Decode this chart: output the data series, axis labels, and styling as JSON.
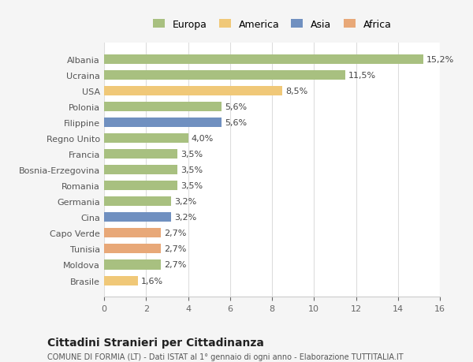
{
  "countries": [
    "Brasile",
    "Moldova",
    "Tunisia",
    "Capo Verde",
    "Cina",
    "Germania",
    "Romania",
    "Bosnia-Erzegovina",
    "Francia",
    "Regno Unito",
    "Filippine",
    "Polonia",
    "USA",
    "Ucraina",
    "Albania"
  ],
  "values": [
    1.6,
    2.7,
    2.7,
    2.7,
    3.2,
    3.2,
    3.5,
    3.5,
    3.5,
    4.0,
    5.6,
    5.6,
    8.5,
    11.5,
    15.2
  ],
  "labels": [
    "1,6%",
    "2,7%",
    "2,7%",
    "2,7%",
    "3,2%",
    "3,2%",
    "3,5%",
    "3,5%",
    "3,5%",
    "4,0%",
    "5,6%",
    "5,6%",
    "8,5%",
    "11,5%",
    "15,2%"
  ],
  "continents": [
    "America",
    "Europa",
    "Africa",
    "Africa",
    "Asia",
    "Europa",
    "Europa",
    "Europa",
    "Europa",
    "Europa",
    "Asia",
    "Europa",
    "America",
    "Europa",
    "Europa"
  ],
  "colors": {
    "Europa": "#a8c080",
    "America": "#f0c878",
    "Asia": "#7090c0",
    "Africa": "#e8a878"
  },
  "legend_order": [
    "Europa",
    "America",
    "Asia",
    "Africa"
  ],
  "title1": "Cittadini Stranieri per Cittadinanza",
  "title2": "COMUNE DI FORMIA (LT) - Dati ISTAT al 1° gennaio di ogni anno - Elaborazione TUTTITALIA.IT",
  "xlim": [
    0,
    16
  ],
  "xticks": [
    0,
    2,
    4,
    6,
    8,
    10,
    12,
    14,
    16
  ],
  "bg_color": "#f5f5f5",
  "plot_bg_color": "#ffffff"
}
